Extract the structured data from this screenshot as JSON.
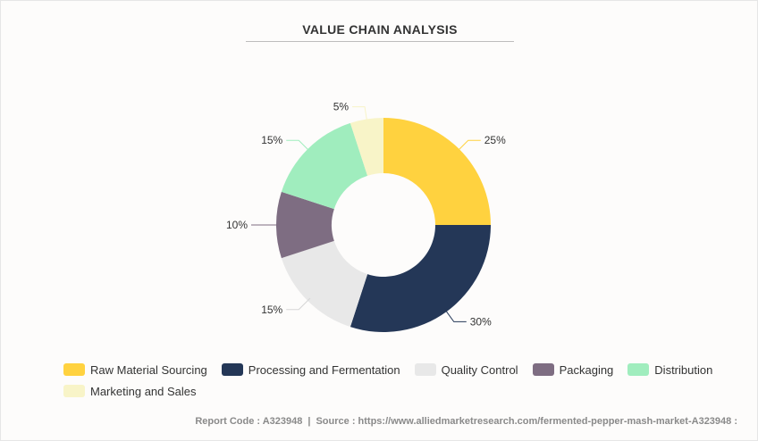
{
  "chart_data": {
    "type": "pie",
    "title": "VALUE CHAIN ANALYSIS",
    "donut": true,
    "categories": [
      "Raw Material Sourcing",
      "Processing and Fermentation",
      "Quality Control",
      "Packaging",
      "Distribution",
      "Marketing and Sales"
    ],
    "values": [
      25,
      30,
      15,
      10,
      15,
      5
    ],
    "value_labels": [
      "25%",
      "30%",
      "15%",
      "10%",
      "15%",
      "5%"
    ],
    "unit": "%",
    "colors": [
      "#FFD23F",
      "#243757",
      "#E8E8E8",
      "#7E6D82",
      "#A0EDBE",
      "#F8F4C8"
    ],
    "legend_position": "bottom"
  },
  "footer": {
    "report_code": "Report Code : A323948",
    "separator": "|",
    "source": "Source : https://www.alliedmarketresearch.com/fermented-pepper-mash-market-A323948 :"
  }
}
